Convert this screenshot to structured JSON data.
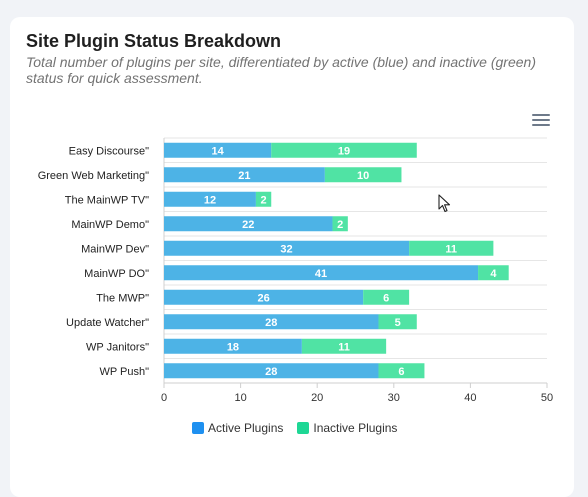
{
  "header": {
    "title": "Site Plugin Status Breakdown",
    "subtitle": "Total number of plugins per site, differentiated by active (blue) and inactive (green) status for quick assessment."
  },
  "toolbar": {
    "menu_icon": "hamburger-menu-icon"
  },
  "colors": {
    "active": "#4db3e6",
    "inactive": "#50e3a4",
    "legend_active": "#1e90f0",
    "legend_inactive": "#1ed795"
  },
  "chart_data": {
    "type": "bar",
    "orientation": "horizontal",
    "stacked": true,
    "categories": [
      "Easy Discourse\"",
      "Green Web Marketing\"",
      "The MainWP TV\"",
      "MainWP Demo\"",
      "MainWP Dev\"",
      "MainWP DO\"",
      "The MWP\"",
      "Update Watcher\"",
      "WP Janitors\"",
      "WP Push\""
    ],
    "series": [
      {
        "name": "Active Plugins",
        "values": [
          14,
          21,
          12,
          22,
          32,
          41,
          26,
          28,
          18,
          28
        ]
      },
      {
        "name": "Inactive Plugins",
        "values": [
          19,
          10,
          2,
          2,
          11,
          4,
          6,
          5,
          11,
          6
        ]
      }
    ],
    "xlim": [
      0,
      50
    ],
    "xticks": [
      0,
      10,
      20,
      30,
      40,
      50
    ],
    "grid": true,
    "legend_position": "bottom"
  }
}
